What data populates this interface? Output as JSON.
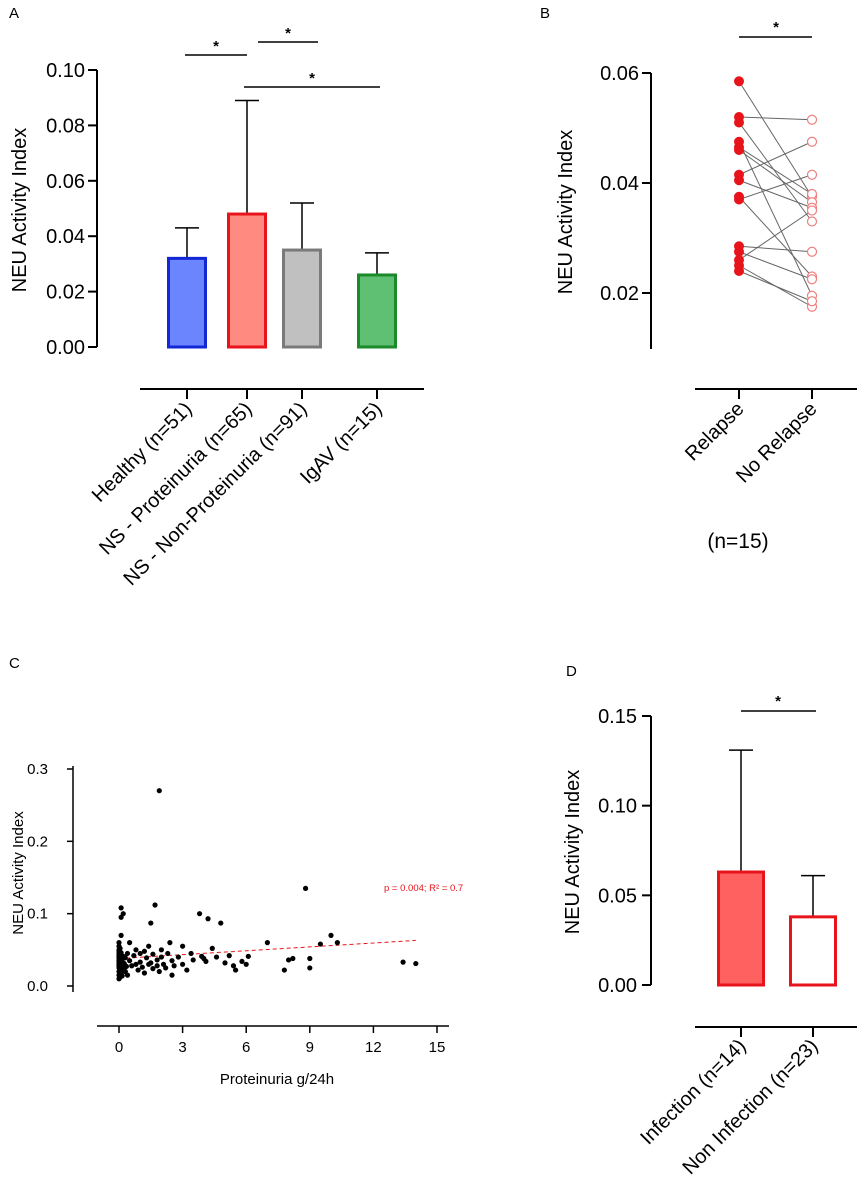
{
  "panels": {
    "A": {
      "label": "A",
      "chart_data": {
        "type": "bar",
        "ylabel": "NEU Activity Index",
        "ylim": [
          0,
          0.1
        ],
        "yticks": [
          "0.00",
          "0.02",
          "0.04",
          "0.06",
          "0.08",
          "0.10"
        ],
        "categories": [
          "Healthy (n=51)",
          "NS - Proteinuria (n=65)",
          "NS - Non-Proteinuria (n=91)",
          "IgAV (n=15)"
        ],
        "values": [
          0.032,
          0.048,
          0.035,
          0.026
        ],
        "errors": [
          0.043,
          0.089,
          0.052,
          0.034
        ],
        "fill_colors": [
          "#6b85ff",
          "#ff8a80",
          "#c0c0c0",
          "#5fbf72"
        ],
        "edge_colors": [
          "#1228d4",
          "#e8141b",
          "#7a7a7a",
          "#1a8a2a"
        ],
        "significance": [
          {
            "from": 0,
            "to": 1,
            "label": "*"
          },
          {
            "from": 1,
            "to": 2,
            "label": "*"
          },
          {
            "from": 1,
            "to": 3,
            "label": "*"
          }
        ]
      }
    },
    "B": {
      "label": "B",
      "chart_data": {
        "type": "scatter",
        "ylabel": "NEU Activity Index",
        "ylim": [
          0.01,
          0.06
        ],
        "yticks": [
          "0.02",
          "0.04",
          "0.06"
        ],
        "categories": [
          "Relapse",
          "No Relapse"
        ],
        "note": "(n=15)",
        "colors": {
          "relapse": "#e8141b",
          "no_relapse": "#f08080"
        },
        "pairs": [
          [
            0.0585,
            0.0375
          ],
          [
            0.052,
            0.0515
          ],
          [
            0.051,
            0.033
          ],
          [
            0.0475,
            0.0195
          ],
          [
            0.0465,
            0.038
          ],
          [
            0.046,
            0.0365
          ],
          [
            0.0415,
            0.0475
          ],
          [
            0.0405,
            0.0355
          ],
          [
            0.0375,
            0.023
          ],
          [
            0.037,
            0.0415
          ],
          [
            0.0285,
            0.0275
          ],
          [
            0.0275,
            0.0225
          ],
          [
            0.026,
            0.035
          ],
          [
            0.025,
            0.0175
          ],
          [
            0.024,
            0.0185
          ]
        ],
        "significance": [
          {
            "from": 0,
            "to": 1,
            "label": "*"
          }
        ]
      }
    },
    "C": {
      "label": "C",
      "chart_data": {
        "type": "scatter",
        "xlabel": "Proteinuria g/24h",
        "ylabel": "NEU Activity Index",
        "xlim": [
          0,
          15
        ],
        "ylim": [
          0,
          0.3
        ],
        "xticks": [
          "0",
          "3",
          "6",
          "9",
          "12",
          "15"
        ],
        "yticks": [
          "0.0",
          "0.1",
          "0.2",
          "0.3"
        ],
        "annotation": "p = 0.004; R² = 0.7",
        "annotation_color": "#e8141b",
        "trendline": {
          "x": [
            0,
            14
          ],
          "y": [
            0.038,
            0.063
          ]
        },
        "points": [
          [
            0.0,
            0.01
          ],
          [
            0.0,
            0.015
          ],
          [
            0.0,
            0.02
          ],
          [
            0.0,
            0.025
          ],
          [
            0.0,
            0.028
          ],
          [
            0.0,
            0.03
          ],
          [
            0.0,
            0.033
          ],
          [
            0.0,
            0.035
          ],
          [
            0.0,
            0.038
          ],
          [
            0.0,
            0.04
          ],
          [
            0.0,
            0.042
          ],
          [
            0.0,
            0.045
          ],
          [
            0.0,
            0.048
          ],
          [
            0.0,
            0.05
          ],
          [
            0.0,
            0.055
          ],
          [
            0.0,
            0.06
          ],
          [
            0.05,
            0.012
          ],
          [
            0.05,
            0.022
          ],
          [
            0.05,
            0.032
          ],
          [
            0.05,
            0.037
          ],
          [
            0.05,
            0.043
          ],
          [
            0.05,
            0.052
          ],
          [
            0.1,
            0.018
          ],
          [
            0.1,
            0.027
          ],
          [
            0.1,
            0.036
          ],
          [
            0.1,
            0.046
          ],
          [
            0.1,
            0.07
          ],
          [
            0.1,
            0.095
          ],
          [
            0.1,
            0.108
          ],
          [
            0.15,
            0.014
          ],
          [
            0.15,
            0.029
          ],
          [
            0.15,
            0.034
          ],
          [
            0.2,
            0.024
          ],
          [
            0.2,
            0.041
          ],
          [
            0.2,
            0.1
          ],
          [
            0.25,
            0.031
          ],
          [
            0.3,
            0.02
          ],
          [
            0.3,
            0.039
          ],
          [
            0.35,
            0.027
          ],
          [
            0.4,
            0.045
          ],
          [
            0.4,
            0.015
          ],
          [
            0.5,
            0.035
          ],
          [
            0.5,
            0.06
          ],
          [
            0.6,
            0.028
          ],
          [
            0.7,
            0.042
          ],
          [
            0.8,
            0.03
          ],
          [
            0.8,
            0.05
          ],
          [
            0.9,
            0.022
          ],
          [
            1.0,
            0.033
          ],
          [
            1.0,
            0.045
          ],
          [
            1.1,
            0.026
          ],
          [
            1.2,
            0.048
          ],
          [
            1.2,
            0.018
          ],
          [
            1.3,
            0.039
          ],
          [
            1.4,
            0.03
          ],
          [
            1.4,
            0.055
          ],
          [
            1.5,
            0.087
          ],
          [
            1.5,
            0.032
          ],
          [
            1.6,
            0.024
          ],
          [
            1.6,
            0.044
          ],
          [
            1.7,
            0.112
          ],
          [
            1.8,
            0.036
          ],
          [
            1.8,
            0.028
          ],
          [
            1.9,
            0.02
          ],
          [
            1.9,
            0.27
          ],
          [
            2.0,
            0.04
          ],
          [
            2.0,
            0.05
          ],
          [
            2.1,
            0.03
          ],
          [
            2.2,
            0.025
          ],
          [
            2.3,
            0.045
          ],
          [
            2.4,
            0.06
          ],
          [
            2.5,
            0.035
          ],
          [
            2.5,
            0.015
          ],
          [
            2.6,
            0.028
          ],
          [
            2.8,
            0.04
          ],
          [
            3.0,
            0.055
          ],
          [
            3.0,
            0.03
          ],
          [
            3.2,
            0.022
          ],
          [
            3.4,
            0.045
          ],
          [
            3.5,
            0.036
          ],
          [
            3.8,
            0.1
          ],
          [
            3.9,
            0.041
          ],
          [
            4.0,
            0.038
          ],
          [
            4.1,
            0.034
          ],
          [
            4.2,
            0.093
          ],
          [
            4.4,
            0.052
          ],
          [
            4.6,
            0.04
          ],
          [
            4.8,
            0.087
          ],
          [
            5.0,
            0.032
          ],
          [
            5.2,
            0.042
          ],
          [
            5.4,
            0.028
          ],
          [
            5.5,
            0.022
          ],
          [
            5.8,
            0.034
          ],
          [
            6.0,
            0.03
          ],
          [
            6.1,
            0.041
          ],
          [
            7.0,
            0.06
          ],
          [
            7.8,
            0.022
          ],
          [
            8.0,
            0.036
          ],
          [
            8.2,
            0.038
          ],
          [
            8.8,
            0.135
          ],
          [
            9.0,
            0.038
          ],
          [
            9.0,
            0.025
          ],
          [
            9.5,
            0.058
          ],
          [
            10.0,
            0.07
          ],
          [
            10.3,
            0.06
          ],
          [
            13.4,
            0.033
          ],
          [
            14.0,
            0.031
          ]
        ]
      }
    },
    "D": {
      "label": "D",
      "chart_data": {
        "type": "bar",
        "ylabel": "NEU Activity Index",
        "ylim": [
          0,
          0.15
        ],
        "yticks": [
          "0.00",
          "0.05",
          "0.10",
          "0.15"
        ],
        "categories": [
          "Infection (n=14)",
          "Non Infection (n=23)"
        ],
        "values": [
          0.063,
          0.038
        ],
        "errors": [
          0.131,
          0.061
        ],
        "fill_colors": [
          "#ff6060",
          "#ffffff"
        ],
        "edge_colors": [
          "#e8141b",
          "#e8141b"
        ],
        "significance": [
          {
            "from": 0,
            "to": 1,
            "label": "*"
          }
        ]
      }
    }
  }
}
